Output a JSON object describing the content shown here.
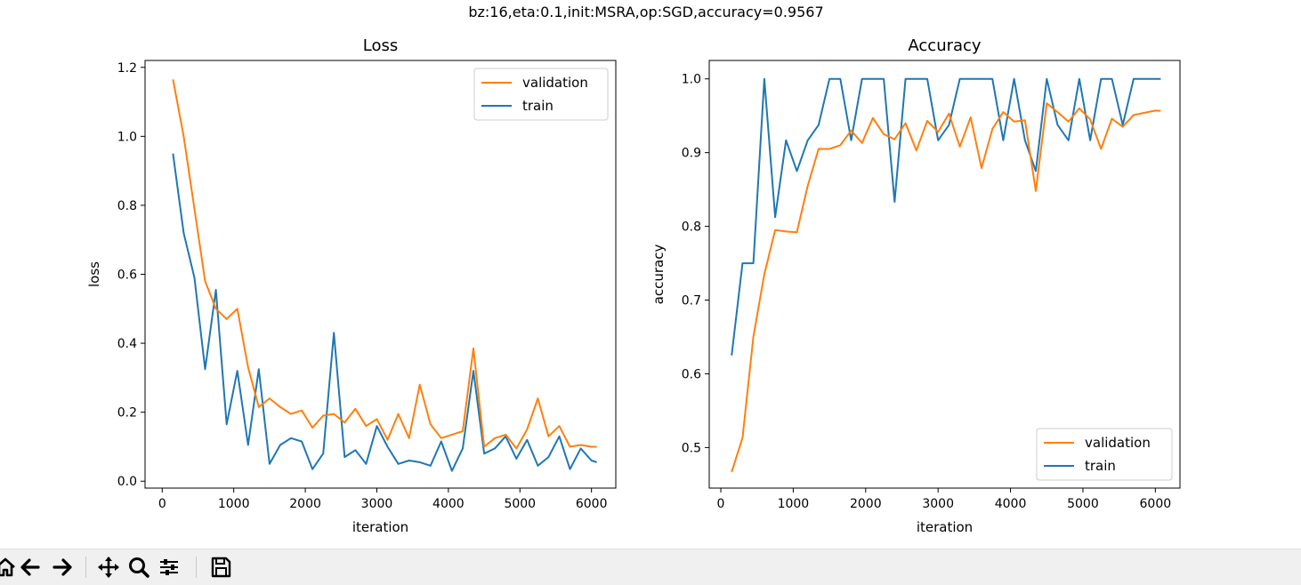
{
  "suptitle": "bz:16,eta:0.1,init:MSRA,op:SGD,accuracy=0.9567",
  "colors": {
    "validation": "#ff7f0e",
    "train": "#1f77b4"
  },
  "chart_data": [
    {
      "type": "line",
      "title": "Loss",
      "xlabel": "iteration",
      "ylabel": "loss",
      "xlim": [
        -240,
        6340
      ],
      "ylim": [
        -0.02,
        1.22
      ],
      "xticks": [
        0,
        1000,
        2000,
        3000,
        4000,
        5000,
        6000
      ],
      "xtick_labels": [
        "0",
        "1000",
        "2000",
        "3000",
        "4000",
        "5000",
        "6000"
      ],
      "yticks": [
        0.0,
        0.2,
        0.4,
        0.6,
        0.8,
        1.0,
        1.2
      ],
      "ytick_labels": [
        "0.0",
        "0.2",
        "0.4",
        "0.6",
        "0.8",
        "1.0",
        "1.2"
      ],
      "grid": false,
      "legend_position": "top-right",
      "x": [
        150,
        300,
        450,
        600,
        750,
        900,
        1050,
        1200,
        1350,
        1500,
        1650,
        1800,
        1950,
        2100,
        2250,
        2400,
        2550,
        2700,
        2850,
        3000,
        3150,
        3300,
        3450,
        3600,
        3750,
        3900,
        4050,
        4200,
        4350,
        4500,
        4650,
        4800,
        4950,
        5100,
        5250,
        5400,
        5550,
        5700,
        5850,
        6000,
        6075
      ],
      "series": [
        {
          "name": "validation",
          "values": [
            1.165,
            1.0,
            0.79,
            0.58,
            0.5,
            0.47,
            0.5,
            0.33,
            0.215,
            0.24,
            0.215,
            0.195,
            0.205,
            0.155,
            0.19,
            0.195,
            0.17,
            0.21,
            0.16,
            0.18,
            0.12,
            0.195,
            0.125,
            0.28,
            0.165,
            0.125,
            0.135,
            0.145,
            0.385,
            0.1,
            0.125,
            0.135,
            0.095,
            0.15,
            0.24,
            0.13,
            0.16,
            0.1,
            0.105,
            0.1,
            0.1
          ]
        },
        {
          "name": "train",
          "values": [
            0.95,
            0.72,
            0.59,
            0.325,
            0.555,
            0.165,
            0.32,
            0.105,
            0.325,
            0.05,
            0.105,
            0.125,
            0.115,
            0.035,
            0.08,
            0.43,
            0.07,
            0.09,
            0.05,
            0.16,
            0.1,
            0.05,
            0.06,
            0.055,
            0.045,
            0.115,
            0.03,
            0.095,
            0.32,
            0.08,
            0.095,
            0.13,
            0.065,
            0.12,
            0.045,
            0.07,
            0.13,
            0.035,
            0.095,
            0.06,
            0.055
          ]
        }
      ]
    },
    {
      "type": "line",
      "title": "Accuracy",
      "xlabel": "iteration",
      "ylabel": "accuracy",
      "xlim": [
        -160,
        6340
      ],
      "ylim": [
        0.445,
        1.025
      ],
      "xticks": [
        0,
        1000,
        2000,
        3000,
        4000,
        5000,
        6000
      ],
      "xtick_labels": [
        "0",
        "1000",
        "2000",
        "3000",
        "4000",
        "5000",
        "6000"
      ],
      "yticks": [
        0.5,
        0.6,
        0.7,
        0.8,
        0.9,
        1.0
      ],
      "ytick_labels": [
        "0.5",
        "0.6",
        "0.7",
        "0.8",
        "0.9",
        "1.0"
      ],
      "grid": false,
      "legend_position": "bottom-right",
      "x": [
        150,
        300,
        450,
        600,
        750,
        900,
        1050,
        1200,
        1350,
        1500,
        1650,
        1800,
        1950,
        2100,
        2250,
        2400,
        2550,
        2700,
        2850,
        3000,
        3150,
        3300,
        3450,
        3600,
        3750,
        3900,
        4050,
        4200,
        4350,
        4500,
        4650,
        4800,
        4950,
        5100,
        5250,
        5400,
        5550,
        5700,
        5850,
        6000,
        6075
      ],
      "series": [
        {
          "name": "validation",
          "values": [
            0.467,
            0.513,
            0.65,
            0.735,
            0.795,
            0.793,
            0.792,
            0.855,
            0.905,
            0.905,
            0.91,
            0.93,
            0.913,
            0.947,
            0.925,
            0.918,
            0.94,
            0.903,
            0.943,
            0.928,
            0.953,
            0.908,
            0.948,
            0.879,
            0.932,
            0.955,
            0.942,
            0.944,
            0.848,
            0.967,
            0.955,
            0.942,
            0.96,
            0.945,
            0.905,
            0.946,
            0.935,
            0.951,
            0.954,
            0.957,
            0.9567
          ]
        },
        {
          "name": "train",
          "values": [
            0.625,
            0.75,
            0.75,
            1.0,
            0.8125,
            0.9167,
            0.875,
            0.9167,
            0.9375,
            1.0,
            1.0,
            0.9167,
            1.0,
            1.0,
            1.0,
            0.8333,
            1.0,
            1.0,
            1.0,
            0.9167,
            0.9375,
            1.0,
            1.0,
            1.0,
            1.0,
            0.9167,
            1.0,
            0.9167,
            0.875,
            1.0,
            0.9375,
            0.9167,
            1.0,
            0.9167,
            1.0,
            1.0,
            0.9375,
            1.0,
            1.0,
            1.0,
            1.0
          ]
        }
      ]
    }
  ],
  "toolbar": {
    "buttons": [
      {
        "name": "home-button",
        "icon": "home-icon"
      },
      {
        "name": "back-button",
        "icon": "arrow-left-icon"
      },
      {
        "name": "forward-button",
        "icon": "arrow-right-icon"
      },
      {
        "name": "pan-button",
        "icon": "move-icon"
      },
      {
        "name": "zoom-button",
        "icon": "magnifier-icon"
      },
      {
        "name": "configure-subplots-button",
        "icon": "sliders-icon"
      },
      {
        "name": "save-button",
        "icon": "floppy-disk-icon"
      }
    ]
  }
}
